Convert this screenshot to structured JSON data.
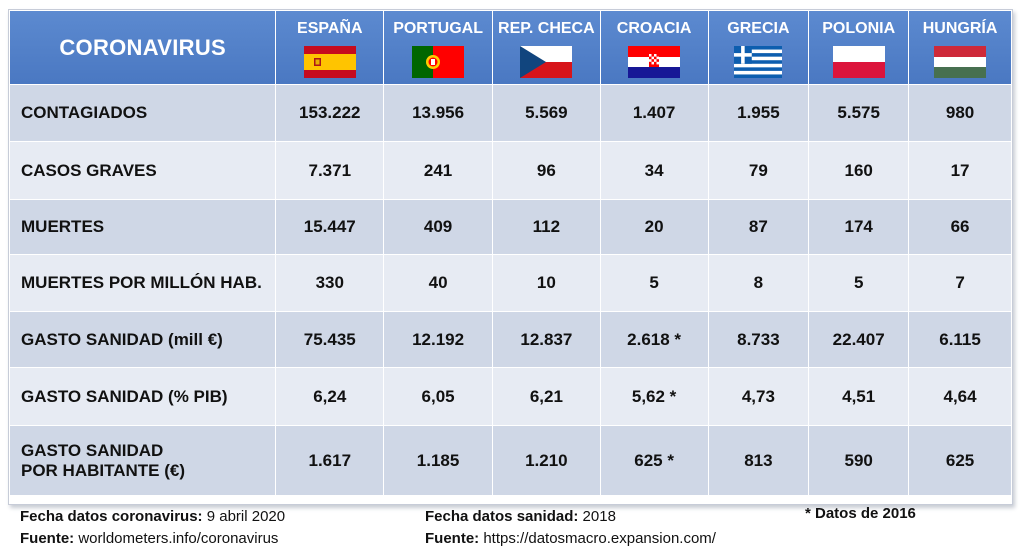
{
  "table": {
    "title": "CORONAVIRUS",
    "countries": [
      {
        "name": "ESPAÑA",
        "flag": "spain-flag"
      },
      {
        "name": "PORTUGAL",
        "flag": "portugal-flag"
      },
      {
        "name": "REP. CHECA",
        "flag": "czech-flag"
      },
      {
        "name": "CROACIA",
        "flag": "croatia-flag"
      },
      {
        "name": "GRECIA",
        "flag": "greece-flag"
      },
      {
        "name": "POLONIA",
        "flag": "poland-flag"
      },
      {
        "name": "HUNGRÍA",
        "flag": "hungary-flag"
      }
    ],
    "rows": [
      {
        "label": "CONTAGIADOS",
        "values": [
          "153.222",
          "13.956",
          "5.569",
          "1.407",
          "1.955",
          "5.575",
          "980"
        ]
      },
      {
        "label": "CASOS GRAVES",
        "values": [
          "7.371",
          "241",
          "96",
          "34",
          "79",
          "160",
          "17"
        ]
      },
      {
        "label": "MUERTES",
        "values": [
          "15.447",
          "409",
          "112",
          "20",
          "87",
          "174",
          "66"
        ]
      },
      {
        "label": "MUERTES POR MILLÓN HAB.",
        "values": [
          "330",
          "40",
          "10",
          "5",
          "8",
          "5",
          "7"
        ]
      },
      {
        "label": "GASTO SANIDAD (mill €)",
        "values": [
          "75.435",
          "12.192",
          "12.837",
          "2.618 *",
          "8.733",
          "22.407",
          "6.115"
        ]
      },
      {
        "label": "GASTO SANIDAD (% PIB)",
        "values": [
          "6,24",
          "6,05",
          "6,21",
          "5,62 *",
          "4,73",
          "4,51",
          "4,64"
        ]
      },
      {
        "label_line1": "GASTO SANIDAD",
        "label_line2": "POR HABITANTE (€)",
        "values": [
          "1.617",
          "1.185",
          "1.210",
          "625 *",
          "813",
          "590",
          "625"
        ]
      }
    ]
  },
  "footer": {
    "covid_date_label": "Fecha datos coronavirus:",
    "covid_date_value": " 9 abril 2020",
    "covid_source_label": "Fuente:",
    "covid_source_value": " worldometers.info/coronavirus",
    "health_date_label": "Fecha datos sanidad:",
    "health_date_value": " 2018",
    "health_source_label": "Fuente:",
    "health_source_value": " https://datosmacro.expansion.com/",
    "note": "* Datos de 2016"
  },
  "colors": {
    "header_blue": "#4f7dc6",
    "row_dark": "#cfd7e6",
    "row_light": "#e7ebf3"
  }
}
